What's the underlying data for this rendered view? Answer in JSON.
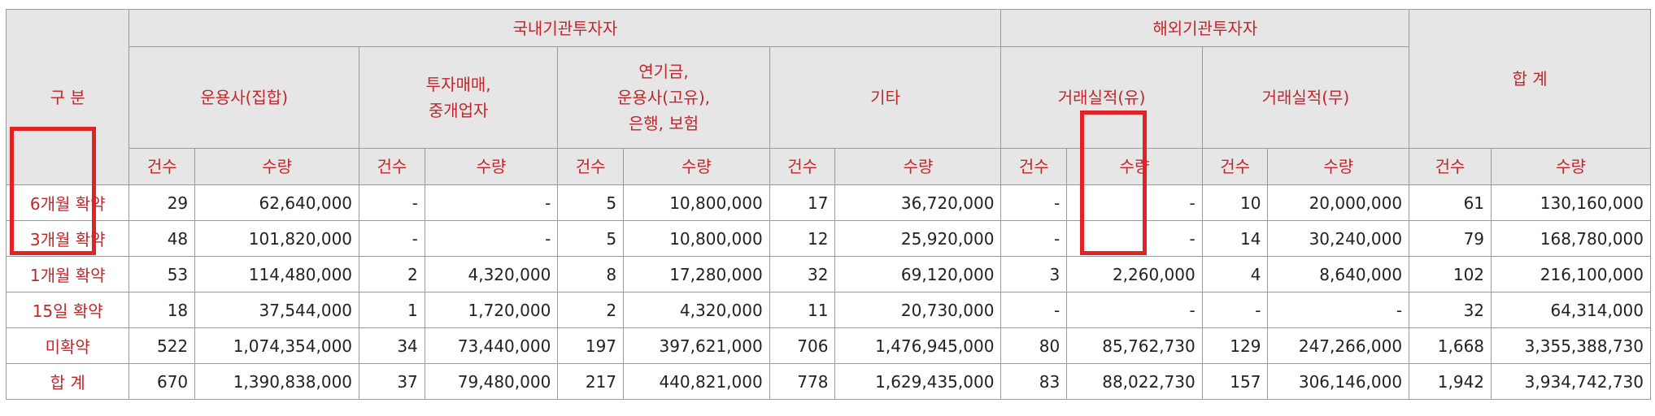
{
  "header": {
    "category": "구 분",
    "domestic": "국내기관투자자",
    "foreign": "해외기관투자자",
    "total": "합 계",
    "groups": [
      "운용사(집합)",
      "투자매매,\n중개업자",
      "연기금,\n운용사(고유),\n은행, 보험",
      "기타",
      "거래실적(유)",
      "거래실적(무)"
    ],
    "count_label": "건수",
    "qty_label": "수량"
  },
  "rows": [
    {
      "label": "6개월 확약",
      "cells": [
        "29",
        "62,640,000",
        "-",
        "-",
        "5",
        "10,800,000",
        "17",
        "36,720,000",
        "-",
        "-",
        "10",
        "20,000,000",
        "61",
        "130,160,000"
      ]
    },
    {
      "label": "3개월 확약",
      "cells": [
        "48",
        "101,820,000",
        "-",
        "-",
        "5",
        "10,800,000",
        "12",
        "25,920,000",
        "-",
        "-",
        "14",
        "30,240,000",
        "79",
        "168,780,000"
      ]
    },
    {
      "label": "1개월 확약",
      "cells": [
        "53",
        "114,480,000",
        "2",
        "4,320,000",
        "8",
        "17,280,000",
        "32",
        "69,120,000",
        "3",
        "2,260,000",
        "4",
        "8,640,000",
        "102",
        "216,100,000"
      ]
    },
    {
      "label": "15일 확약",
      "cells": [
        "18",
        "37,544,000",
        "1",
        "1,720,000",
        "2",
        "4,320,000",
        "11",
        "20,730,000",
        "-",
        "-",
        "-",
        "-",
        "32",
        "64,314,000"
      ]
    },
    {
      "label": "미확약",
      "cells": [
        "522",
        "1,074,354,000",
        "34",
        "73,440,000",
        "197",
        "397,621,000",
        "706",
        "1,476,945,000",
        "80",
        "85,762,730",
        "129",
        "247,266,000",
        "1,668",
        "3,355,388,730"
      ]
    },
    {
      "label": "합 계",
      "cells": [
        "670",
        "1,390,838,000",
        "37",
        "79,480,000",
        "217",
        "440,821,000",
        "778",
        "1,629,435,000",
        "83",
        "88,022,730",
        "157",
        "306,146,000",
        "1,942",
        "3,934,742,730"
      ]
    }
  ],
  "highlight_color": "#e32228"
}
